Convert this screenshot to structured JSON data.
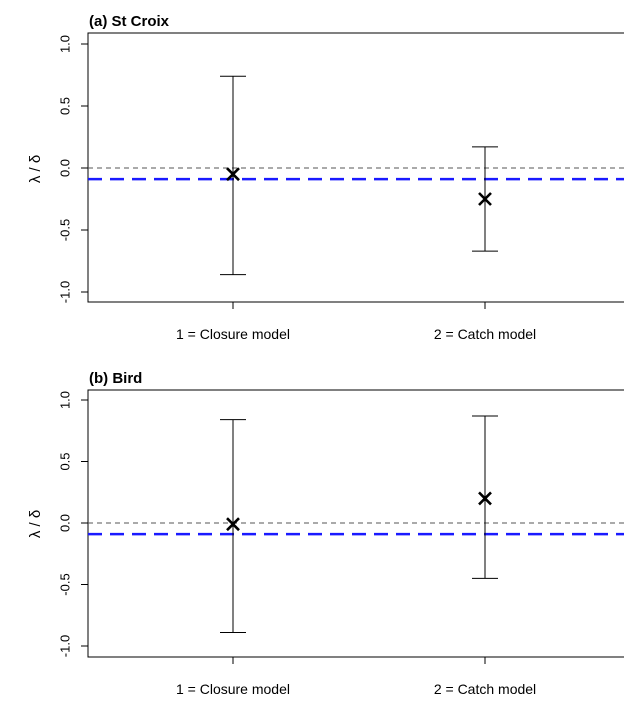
{
  "chart_data": [
    {
      "type": "scatter",
      "title": "(a) St Croix",
      "ylabel": "λ / δ",
      "ylim": [
        -1.0,
        1.0
      ],
      "yticks": [
        "-1.0",
        "-0.5",
        "0.0",
        "0.5",
        "1.0"
      ],
      "categories": [
        "1 = Closure model",
        "2 = Catch model"
      ],
      "series": [
        {
          "estimate": -0.05,
          "lower": -0.86,
          "upper": 0.74,
          "marker": "x"
        },
        {
          "estimate": -0.25,
          "lower": -0.67,
          "upper": 0.17,
          "marker": "x"
        }
      ],
      "reference_lines": [
        {
          "y": 0.0,
          "color": "#555555",
          "style": "dashed"
        },
        {
          "y": -0.09,
          "color": "#1a1aff",
          "style": "dashed"
        }
      ],
      "grid": false
    },
    {
      "type": "scatter",
      "title": "(b) Bird",
      "ylabel": "λ / δ",
      "ylim": [
        -1.0,
        1.0
      ],
      "yticks": [
        "-1.0",
        "-0.5",
        "0.0",
        "0.5",
        "1.0"
      ],
      "categories": [
        "1 = Closure model",
        "2 = Catch model"
      ],
      "series": [
        {
          "estimate": -0.01,
          "lower": -0.89,
          "upper": 0.84,
          "marker": "x"
        },
        {
          "estimate": 0.2,
          "lower": -0.45,
          "upper": 0.87,
          "marker": "x"
        }
      ],
      "reference_lines": [
        {
          "y": 0.0,
          "color": "#555555",
          "style": "dashed"
        },
        {
          "y": -0.09,
          "color": "#1a1aff",
          "style": "dashed"
        }
      ],
      "grid": false
    }
  ]
}
